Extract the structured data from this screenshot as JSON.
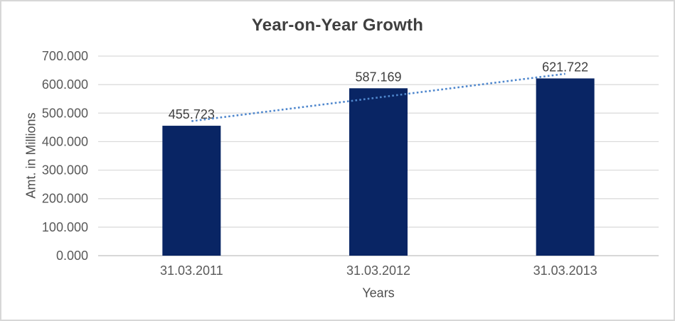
{
  "frame": {
    "background": "#ffffff",
    "border_color": "#d7d7d7"
  },
  "chart_data": {
    "type": "bar",
    "title": "Year-on-Year Growth",
    "xlabel": "Years",
    "ylabel": "Amt. in Millions",
    "categories": [
      "31.03.2011",
      "31.03.2012",
      "31.03.2013"
    ],
    "values": [
      455.723,
      587.169,
      621.722
    ],
    "data_labels": [
      "455.723",
      "587.169",
      "621.722"
    ],
    "ylim": [
      0,
      700
    ],
    "yticks": [
      {
        "value": 0,
        "label": "0.000"
      },
      {
        "value": 100,
        "label": "100.000"
      },
      {
        "value": 200,
        "label": "200.000"
      },
      {
        "value": 300,
        "label": "300.000"
      },
      {
        "value": 400,
        "label": "400.000"
      },
      {
        "value": 500,
        "label": "500.000"
      },
      {
        "value": 600,
        "label": "600.000"
      },
      {
        "value": 700,
        "label": "700.000"
      }
    ],
    "grid": true,
    "legend": "none",
    "trendline": {
      "type": "linear",
      "style": "dotted",
      "color": "#4f87cd"
    },
    "colors": {
      "bar": "#092564",
      "gridline": "#d9d9d9",
      "axis_line": "#bfbfbf",
      "title": "#3f3f3f",
      "axis_title": "#4d4d4d",
      "tick_label": "#595959",
      "data_label": "#404040"
    }
  }
}
